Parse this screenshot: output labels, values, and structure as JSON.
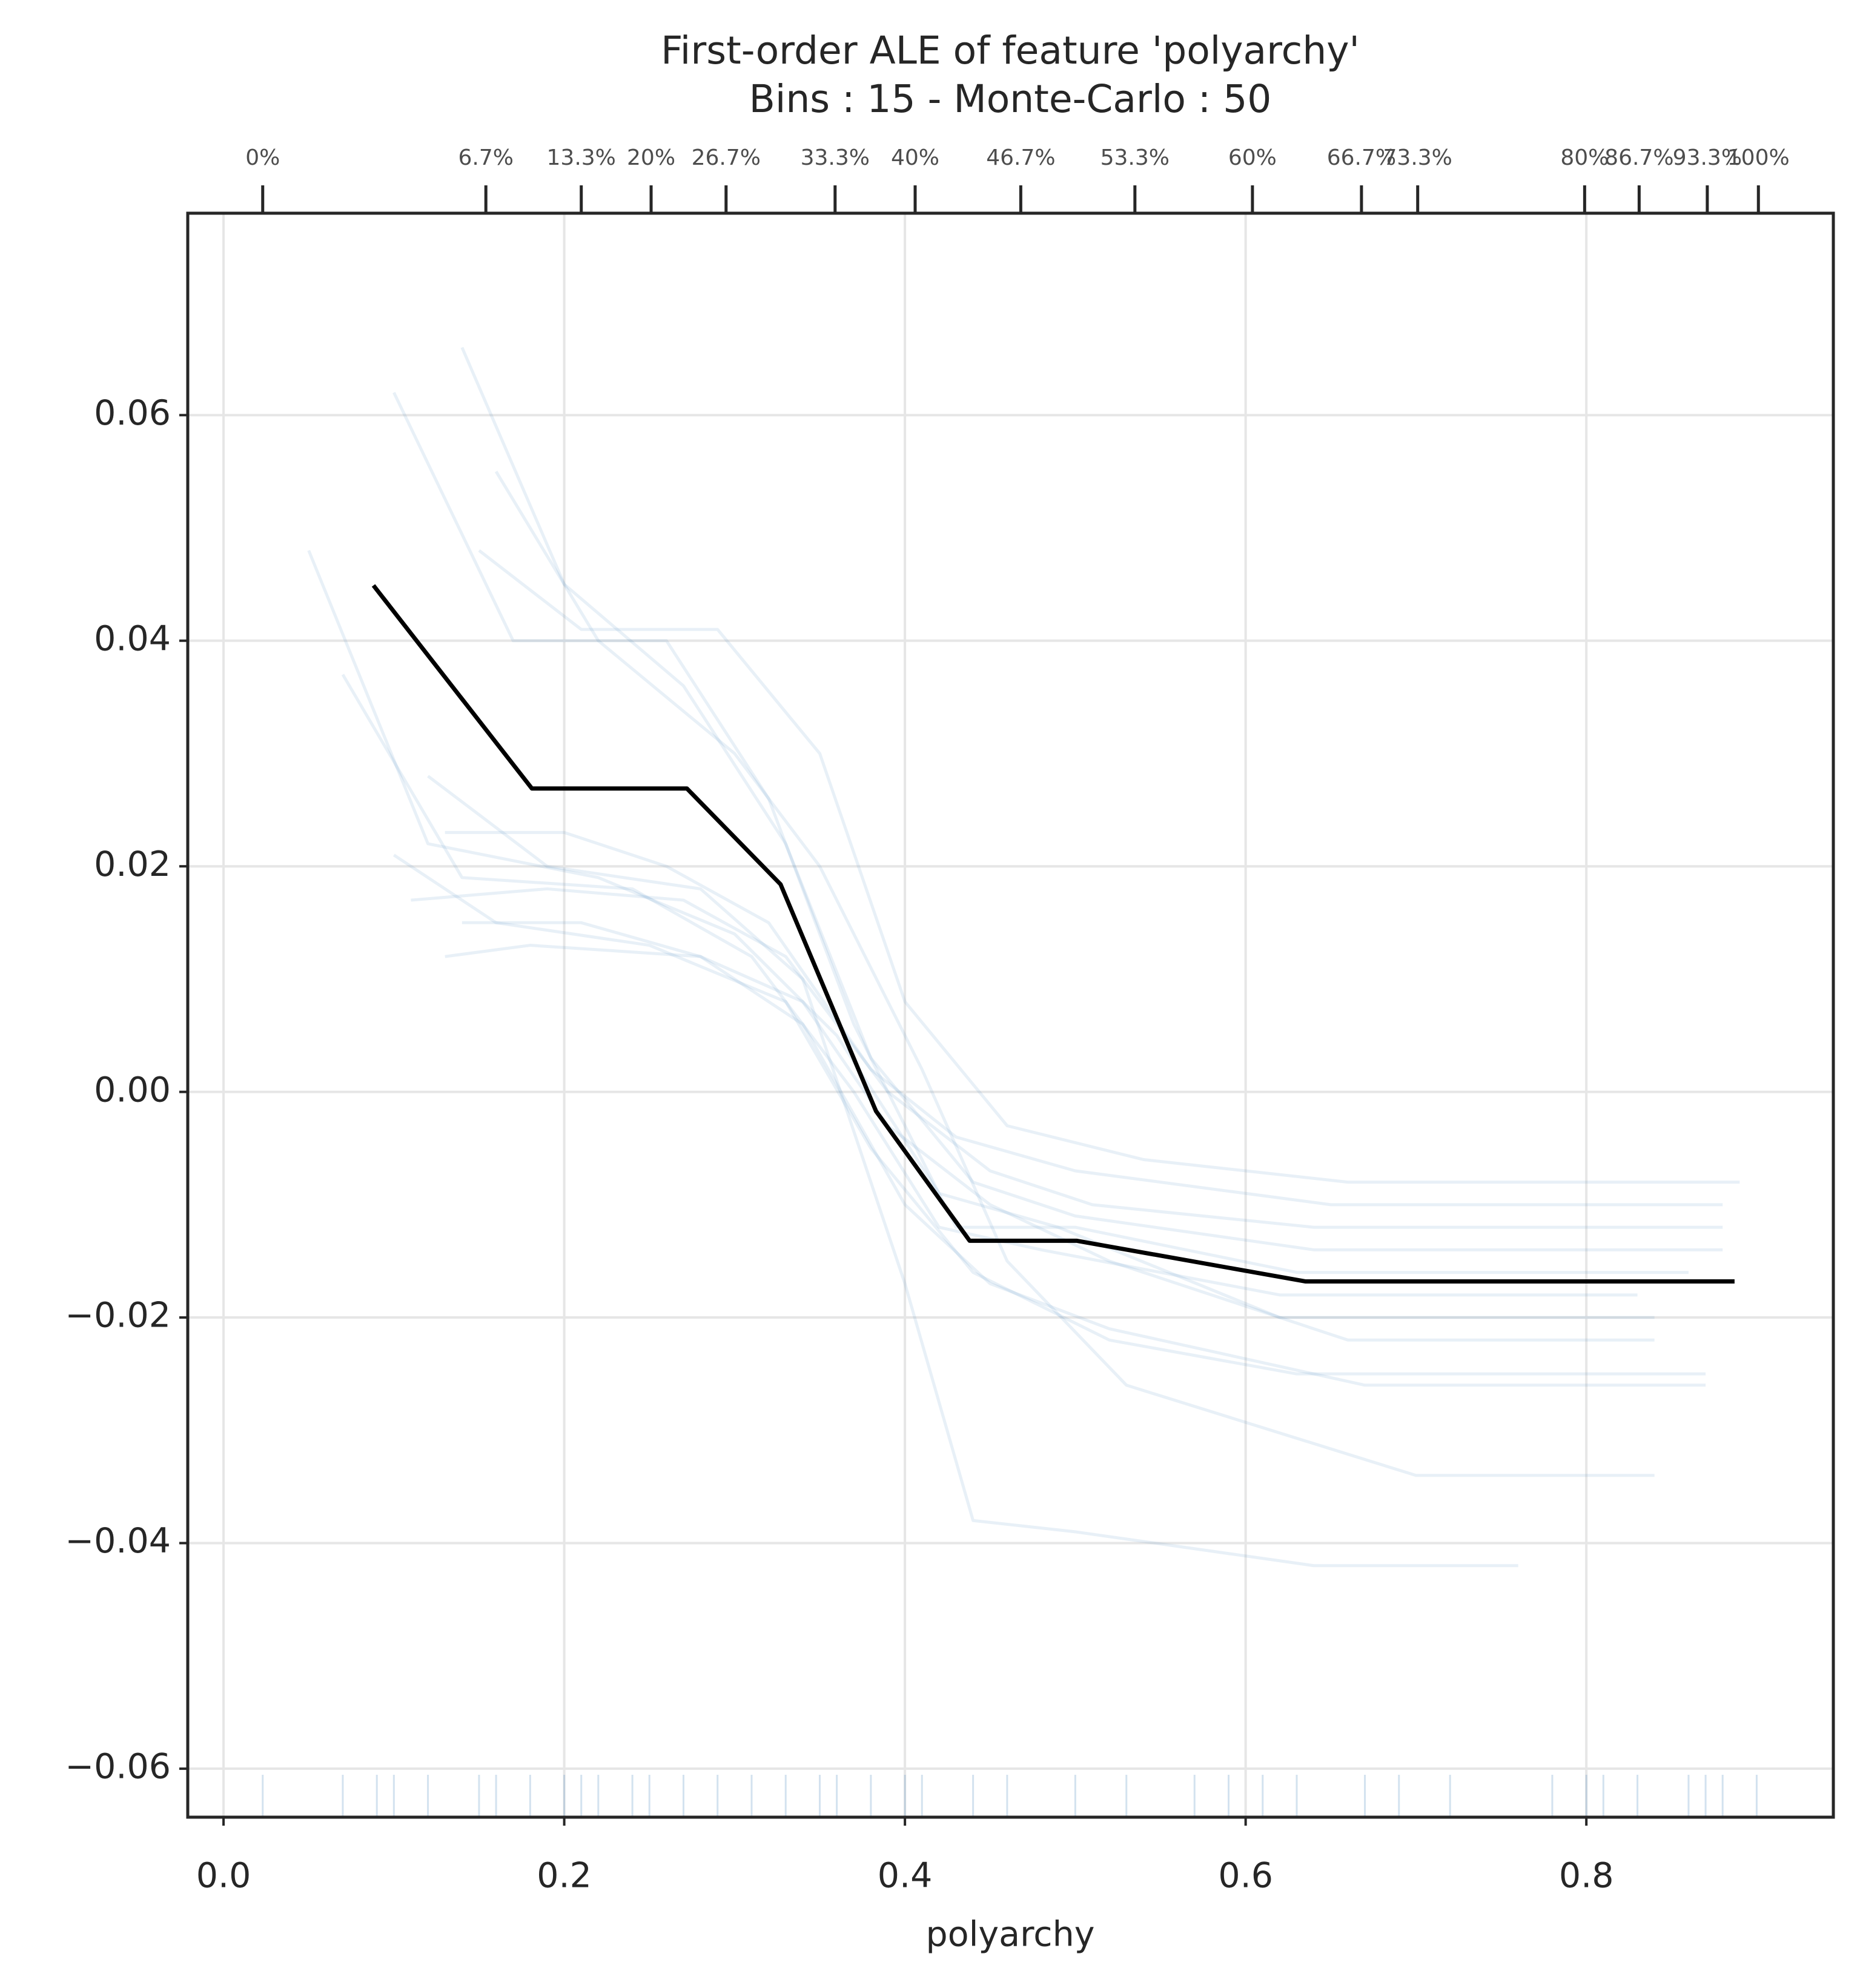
{
  "chart_data": {
    "type": "line",
    "title": "First-order ALE of feature 'polyarchy'",
    "subtitle": "Bins : 15 - Monte-Carlo : 50",
    "x_label": "polyarchy",
    "xlim": [
      -0.021,
      0.945
    ],
    "ylim": [
      -0.0643,
      0.0779
    ],
    "xticks": [
      {
        "value": 0,
        "label": "0.0"
      },
      0.2,
      0.4,
      0.6,
      0.8
    ],
    "yticks": [
      {
        "value": -0.06,
        "label": "−0.06"
      },
      {
        "value": -0.04,
        "label": "−0.04"
      },
      {
        "value": -0.02,
        "label": "−0.02"
      },
      {
        "value": 0,
        "label": "0.00"
      },
      0.02,
      0.04,
      0.06
    ],
    "x2ticks": [
      {
        "value": 0.023,
        "label": "0%"
      },
      {
        "value": 0.154,
        "label": "6.7%"
      },
      {
        "value": 0.21,
        "label": "13.3%"
      },
      {
        "value": 0.251,
        "label": "20%"
      },
      {
        "value": 0.295,
        "label": "26.7%"
      },
      {
        "value": 0.359,
        "label": "33.3%"
      },
      {
        "value": 0.406,
        "label": "40%"
      },
      {
        "value": 0.468,
        "label": "46.7%"
      },
      {
        "value": 0.535,
        "label": "53.3%"
      },
      {
        "value": 0.604,
        "label": "60%"
      },
      {
        "value": 0.668,
        "label": "66.7%"
      },
      {
        "value": 0.701,
        "label": "73.3%"
      },
      {
        "value": 0.799,
        "label": "80%"
      },
      {
        "value": 0.831,
        "label": "86.7%"
      },
      {
        "value": 0.871,
        "label": "93.3%"
      },
      {
        "value": 0.901,
        "label": "100%"
      }
    ],
    "grid": true,
    "mc_color": "#4f8bc0",
    "mc_opacity": 0.13,
    "monte_carlo": [
      {
        "x": [
          0.14,
          0.2,
          0.27,
          0.33,
          0.38,
          0.44,
          0.5,
          0.64,
          0.88
        ],
        "values": [
          0.066,
          0.045,
          0.036,
          0.022,
          0.003,
          -0.008,
          -0.011,
          -0.014,
          -0.014
        ]
      },
      {
        "x": [
          0.1,
          0.17,
          0.26,
          0.32,
          0.37,
          0.43,
          0.5,
          0.63,
          0.86
        ],
        "values": [
          0.062,
          0.04,
          0.04,
          0.026,
          0.006,
          -0.012,
          -0.012,
          -0.016,
          -0.016
        ]
      },
      {
        "x": [
          0.05,
          0.12,
          0.22,
          0.3,
          0.36,
          0.42,
          0.49,
          0.62,
          0.84
        ],
        "values": [
          0.048,
          0.022,
          0.019,
          0.014,
          0.005,
          -0.009,
          -0.012,
          -0.02,
          -0.02
        ]
      },
      {
        "x": [
          0.07,
          0.14,
          0.24,
          0.31,
          0.37,
          0.42,
          0.48,
          0.62,
          0.83
        ],
        "values": [
          0.037,
          0.019,
          0.018,
          0.012,
          0.0,
          -0.012,
          -0.014,
          -0.018,
          -0.018
        ]
      },
      {
        "x": [
          0.1,
          0.16,
          0.25,
          0.33,
          0.38,
          0.44,
          0.52,
          0.63,
          0.87
        ],
        "values": [
          0.021,
          0.015,
          0.013,
          0.008,
          -0.005,
          -0.016,
          -0.022,
          -0.025,
          -0.025
        ]
      },
      {
        "x": [
          0.12,
          0.19,
          0.28,
          0.34,
          0.4,
          0.44,
          0.5,
          0.64,
          0.76
        ],
        "values": [
          0.028,
          0.02,
          0.018,
          0.01,
          -0.017,
          -0.038,
          -0.039,
          -0.042,
          -0.042
        ]
      },
      {
        "x": [
          0.15,
          0.21,
          0.29,
          0.35,
          0.4,
          0.46,
          0.54,
          0.66,
          0.89
        ],
        "values": [
          0.048,
          0.041,
          0.041,
          0.03,
          0.008,
          -0.003,
          -0.006,
          -0.008,
          -0.008
        ]
      },
      {
        "x": [
          0.13,
          0.18,
          0.28,
          0.34,
          0.39,
          0.45,
          0.52,
          0.66,
          0.84
        ],
        "values": [
          0.012,
          0.013,
          0.012,
          0.008,
          -0.003,
          -0.01,
          -0.015,
          -0.022,
          -0.022
        ]
      },
      {
        "x": [
          0.11,
          0.19,
          0.27,
          0.33,
          0.39,
          0.45,
          0.51,
          0.64,
          0.88
        ],
        "values": [
          0.017,
          0.018,
          0.017,
          0.012,
          0.0,
          -0.007,
          -0.01,
          -0.012,
          -0.012
        ]
      },
      {
        "x": [
          0.16,
          0.22,
          0.3,
          0.35,
          0.41,
          0.46,
          0.53,
          0.7,
          0.84
        ],
        "values": [
          0.055,
          0.04,
          0.03,
          0.02,
          0.002,
          -0.015,
          -0.026,
          -0.034,
          -0.034
        ]
      },
      {
        "x": [
          0.13,
          0.2,
          0.26,
          0.32,
          0.38,
          0.43,
          0.5,
          0.65,
          0.88
        ],
        "values": [
          0.023,
          0.023,
          0.02,
          0.015,
          0.002,
          -0.004,
          -0.007,
          -0.01,
          -0.01
        ]
      },
      {
        "x": [
          0.14,
          0.21,
          0.28,
          0.34,
          0.4,
          0.45,
          0.52,
          0.67,
          0.87
        ],
        "values": [
          0.015,
          0.015,
          0.012,
          0.006,
          -0.01,
          -0.017,
          -0.021,
          -0.026,
          -0.026
        ]
      }
    ],
    "series": [
      {
        "color": "#000000",
        "x": [
          0.088,
          0.181,
          0.272,
          0.327,
          0.383,
          0.438,
          0.501,
          0.635,
          0.887
        ],
        "values": [
          0.0449,
          0.0269,
          0.0269,
          0.0184,
          -0.0017,
          -0.0132,
          -0.0132,
          -0.0168,
          -0.0168
        ]
      }
    ],
    "rug": [
      0.023,
      0.07,
      0.09,
      0.1,
      0.12,
      0.15,
      0.16,
      0.18,
      0.2,
      0.21,
      0.22,
      0.24,
      0.25,
      0.27,
      0.29,
      0.31,
      0.33,
      0.35,
      0.36,
      0.38,
      0.4,
      0.41,
      0.44,
      0.46,
      0.5,
      0.53,
      0.57,
      0.59,
      0.61,
      0.63,
      0.67,
      0.69,
      0.72,
      0.78,
      0.8,
      0.81,
      0.83,
      0.86,
      0.87,
      0.88,
      0.9
    ]
  }
}
